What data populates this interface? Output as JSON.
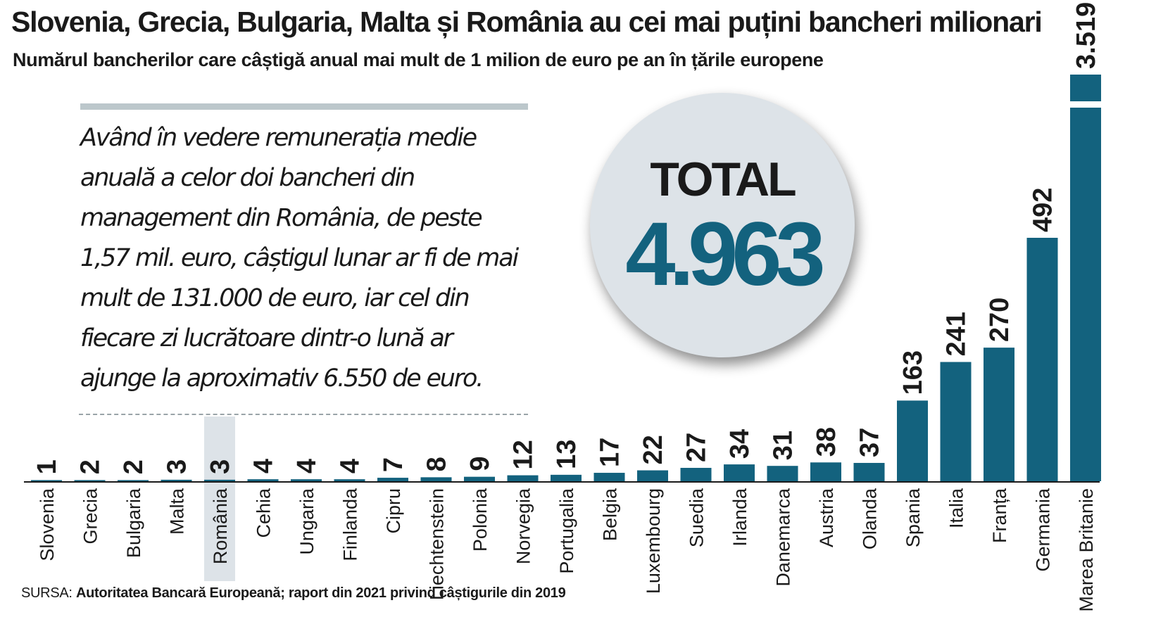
{
  "header": {
    "title": "Slovenia, Grecia, Bulgaria, Malta și România au cei mai puțini bancheri milionari",
    "subtitle": "Numărul bancherilor care câștigă anual mai mult de 1 milion de euro pe an în țările europene"
  },
  "quote": {
    "text": "Având în vedere remunerația medie anuală a celor doi bancheri din management din România, de peste 1,57 mil. euro, câștigul lunar ar fi de mai mult de 131.000 de euro, iar cel din fiecare zi lucrătoare dintr-o lună ar ajunge la aproximativ 6.550 de euro."
  },
  "total": {
    "label": "TOTAL",
    "value": "4.963"
  },
  "source": {
    "prefix": "SURSA:",
    "text": "Autoritatea Bancară Europeană; raport din 2021 privind câștigurile din 2019"
  },
  "colors": {
    "bar": "#13627e",
    "highlight": "#dde3e8",
    "circle": "#dde3e8",
    "total_value": "#13627e"
  },
  "chart_data": {
    "type": "bar",
    "orientation": "vertical",
    "highlight_category": "România",
    "axis_break": "top bar (Marea Britanie) is truncated with a white break line",
    "categories": [
      "Slovenia",
      "Grecia",
      "Bulgaria",
      "Malta",
      "România",
      "Cehia",
      "Ungaria",
      "Finlanda",
      "Cipru",
      "Liechtenstein",
      "Polonia",
      "Norvegia",
      "Portugalia",
      "Belgia",
      "Luxembourg",
      "Suedia",
      "Irlanda",
      "Danemarca",
      "Austria",
      "Olanda",
      "Spania",
      "Italia",
      "Franța",
      "Germania",
      "Marea Britanie"
    ],
    "values": [
      1,
      2,
      2,
      3,
      3,
      4,
      4,
      4,
      7,
      8,
      9,
      12,
      13,
      17,
      22,
      27,
      34,
      31,
      38,
      37,
      163,
      241,
      270,
      492,
      3519
    ],
    "value_labels": [
      "1",
      "2",
      "2",
      "3",
      "3",
      "4",
      "4",
      "4",
      "7",
      "8",
      "9",
      "12",
      "13",
      "17",
      "22",
      "27",
      "34",
      "31",
      "38",
      "37",
      "163",
      "241",
      "270",
      "492",
      "3.519"
    ]
  }
}
